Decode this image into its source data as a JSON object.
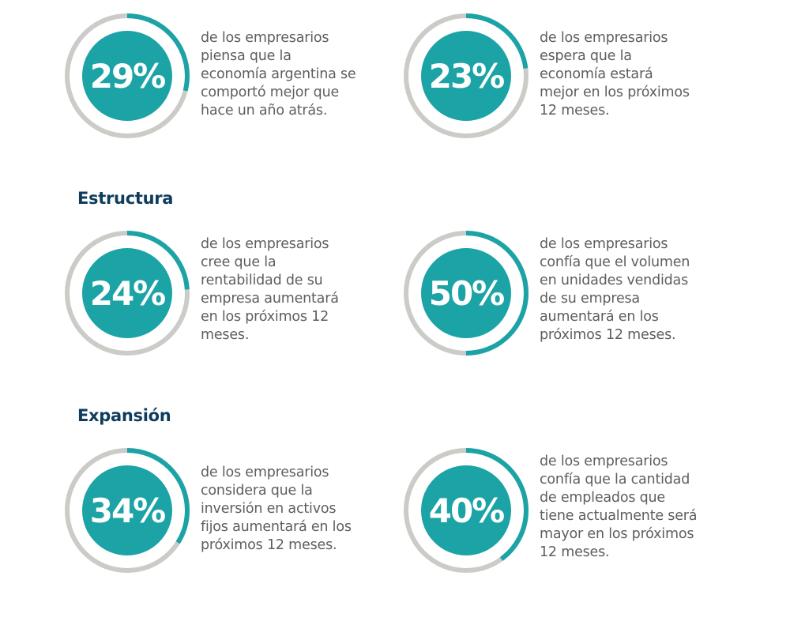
{
  "colors": {
    "accent": "#1ba3a6",
    "ring_track": "#cbcbc7",
    "heading": "#0f3c5d",
    "body_text": "#5e5e5e"
  },
  "sections": [
    {
      "title": "",
      "stats": [
        {
          "value": 29,
          "label": "29%",
          "description_lines": [
            "de los empresarios",
            "piensa que la",
            "economía argentina se",
            "comportó mejor que",
            "hace un año atrás."
          ]
        },
        {
          "value": 23,
          "label": "23%",
          "description_lines": [
            "de los empresarios",
            "espera que la",
            "economía estará",
            "mejor en los próximos",
            "12 meses."
          ]
        }
      ]
    },
    {
      "title": "Estructura",
      "stats": [
        {
          "value": 24,
          "label": "24%",
          "description_lines": [
            "de los empresarios",
            "cree que la",
            "rentabilidad de su",
            "empresa aumentará",
            "en los próximos 12",
            "meses."
          ]
        },
        {
          "value": 50,
          "label": "50%",
          "description_lines": [
            "de los empresarios",
            "confía que el volumen",
            "en unidades vendidas",
            "de su empresa",
            "aumentará en los",
            "próximos 12 meses."
          ]
        }
      ]
    },
    {
      "title": "Expansión",
      "stats": [
        {
          "value": 34,
          "label": "34%",
          "description_lines": [
            "de los empresarios",
            "considera que la",
            "inversión en activos",
            "fijos aumentará en los",
            "próximos 12 meses."
          ]
        },
        {
          "value": 40,
          "label": "40%",
          "description_lines": [
            "de los empresarios",
            "confía que la cantidad",
            "de empleados que",
            "tiene actualmente será",
            "mayor en los próximos",
            "12 meses."
          ]
        }
      ]
    }
  ]
}
